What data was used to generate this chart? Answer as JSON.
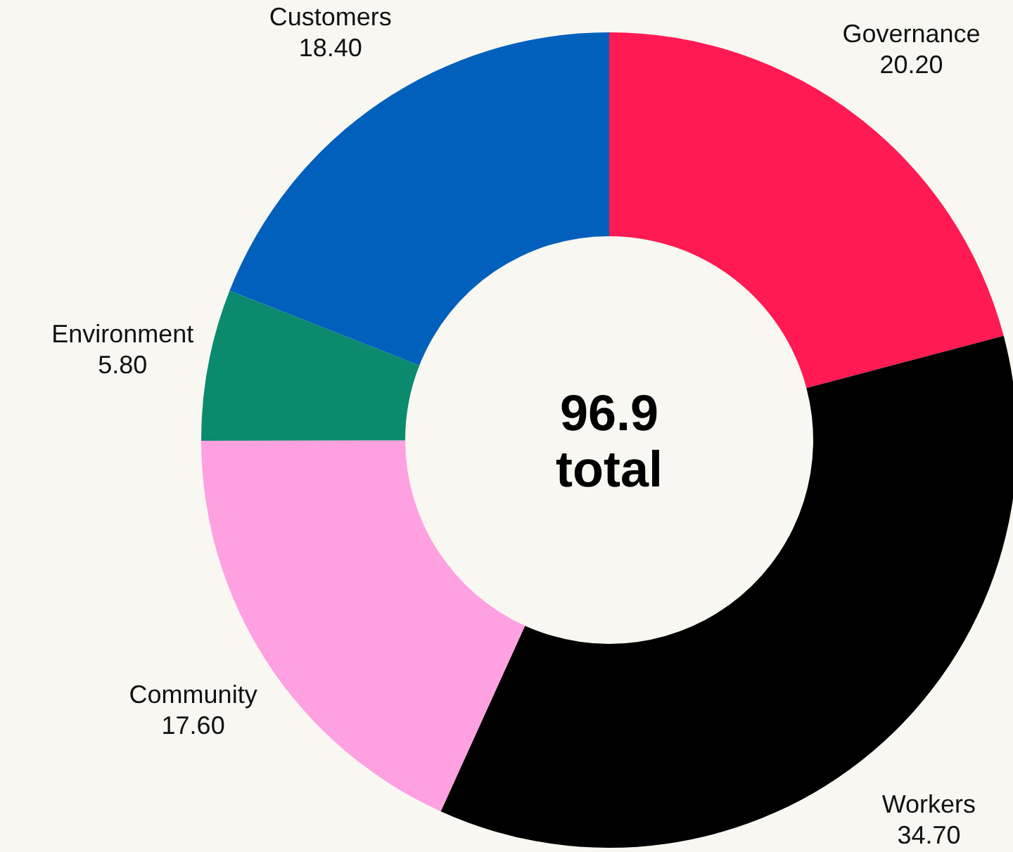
{
  "chart_data": {
    "type": "donut",
    "categories": [
      "Governance",
      "Workers",
      "Community",
      "Environment",
      "Customers"
    ],
    "values": [
      20.2,
      34.7,
      17.6,
      5.8,
      18.4
    ],
    "colors": [
      "#ff1a53",
      "#000000",
      "#ffa0e0",
      "#0b8a6e",
      "#0060bb"
    ],
    "value_labels": [
      "20.20",
      "34.70",
      "17.60",
      "5.80",
      "18.40"
    ],
    "annotations": [
      "96.9",
      "total"
    ],
    "legend": false
  }
}
